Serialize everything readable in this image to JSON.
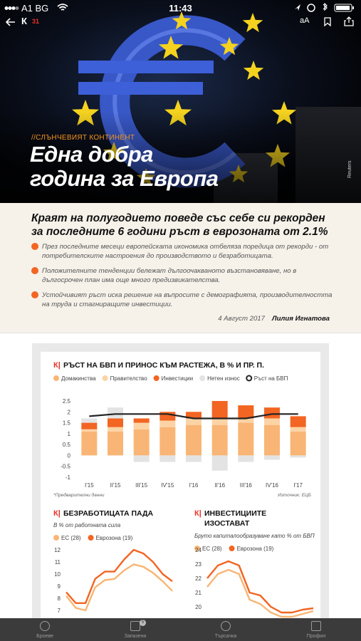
{
  "status_bar": {
    "carrier": "A1 BG",
    "time": "11:43"
  },
  "toolbar": {
    "logo": "К",
    "issue": "31",
    "font_button": "aA"
  },
  "hero": {
    "kicker": "//СЛЪНЧЕВИЯТ КОНТИНЕНТ",
    "title_lines": [
      "Една добра",
      "година за Европа"
    ],
    "credit": "Reuters"
  },
  "lead": {
    "headline": "Краят на полугодието поведе със себе си рекорден за последните 6 години ръст в еврозоната от 2.1%",
    "bullets": [
      "През последните месеци европейската икономика отбеляза поредица от рекорди - от потребителските настроения до производството и безработицата.",
      "Положителните тенденции бележат дългоочакваното възстановяване, но в дългосрочен план има още много предизвикателства.",
      "Устойчивият ръст иска решение на въпросите с демографията, производителността на труда и стагниращите инвестиции."
    ],
    "date": "4 Август 2017",
    "author": "Лилия Игнатова"
  },
  "chart_data": [
    {
      "type": "bar",
      "stacked": true,
      "logo": "К|",
      "title": "РЪСТ НА БВП И ПРИНОС КЪМ РАСТЕЖА, В % И ПР. П.",
      "categories": [
        "I'15",
        "II'15",
        "III'15",
        "IV'15",
        "I'16",
        "II'16",
        "III'16",
        "IV'16",
        "I'17"
      ],
      "series": [
        {
          "name": "Домакинства",
          "color": "#f9b575",
          "values": [
            1.1,
            1.1,
            1.2,
            1.3,
            1.4,
            1.4,
            1.5,
            1.4,
            1.1
          ]
        },
        {
          "name": "Правителство",
          "color": "#fcd3a5",
          "values": [
            0.1,
            0.2,
            0.3,
            0.3,
            0.3,
            0.3,
            0.2,
            0.3,
            0.2
          ]
        },
        {
          "name": "Инвестиции",
          "color": "#f26522",
          "values": [
            0.3,
            0.4,
            0.2,
            0.4,
            0.3,
            0.8,
            0.6,
            0.5,
            0.5
          ]
        },
        {
          "name": "Нетен износ",
          "color": "#e3e3e3",
          "values": [
            0.2,
            0.5,
            -0.3,
            -0.3,
            -0.3,
            -0.7,
            -0.3,
            -0.2,
            -0.1
          ]
        },
        {
          "name": "Ръст на БВП",
          "color": "#222222",
          "type": "line",
          "values": [
            1.8,
            1.9,
            1.9,
            1.9,
            1.7,
            1.7,
            1.7,
            1.9,
            1.9
          ]
        }
      ],
      "ylim": [
        -1,
        2.5
      ],
      "yticks": [
        2.5,
        2,
        1.5,
        1,
        0.5,
        0,
        -0.5,
        -1
      ],
      "grid": false,
      "note": "*Предварителни данни",
      "source": "Източник: ЕЦБ"
    },
    {
      "type": "line",
      "logo": "К|",
      "title": "БЕЗРАБОТИЦАТА ПАДА",
      "subtitle": "В % от работната сила",
      "series": [
        {
          "name": "ЕС (28)",
          "color": "#f9b575",
          "values": [
            8.2,
            7.2,
            7.0,
            8.9,
            9.5,
            9.6,
            10.3,
            10.8,
            10.6,
            10.1,
            9.4,
            8.6
          ]
        },
        {
          "name": "Еврозона (19)",
          "color": "#f26522",
          "values": [
            8.5,
            7.6,
            7.6,
            9.6,
            10.2,
            10.2,
            11.2,
            12.0,
            11.7,
            11.0,
            10.0,
            9.4
          ]
        }
      ],
      "ylim": [
        7,
        12
      ],
      "yticks": [
        12,
        11,
        10,
        9,
        8,
        7
      ]
    },
    {
      "type": "line",
      "logo": "К|",
      "title_lines": [
        "ИНВЕСТИЦИИТЕ",
        "ИЗОСТАВАТ"
      ],
      "subtitle": "Бруто капиталообразуване като % от БВП",
      "series": [
        {
          "name": "ЕС (28)",
          "color": "#f9b575",
          "values": [
            21.4,
            22.3,
            22.6,
            22.3,
            20.5,
            20.2,
            19.6,
            19.3,
            19.3,
            19.5,
            19.7
          ]
        },
        {
          "name": "Еврозона (19)",
          "color": "#f26522",
          "values": [
            22.0,
            22.9,
            23.2,
            22.9,
            21.0,
            20.8,
            20.0,
            19.6,
            19.6,
            19.8,
            19.9
          ]
        }
      ],
      "ylim": [
        19,
        24
      ],
      "yticks": [
        24,
        23,
        22,
        21,
        20
      ]
    }
  ],
  "tab_bar": {
    "items": [
      {
        "label": "Броеве"
      },
      {
        "label": "Запазени",
        "badge": 5
      },
      {
        "label": "Търсачка"
      },
      {
        "label": "Профил"
      }
    ]
  }
}
